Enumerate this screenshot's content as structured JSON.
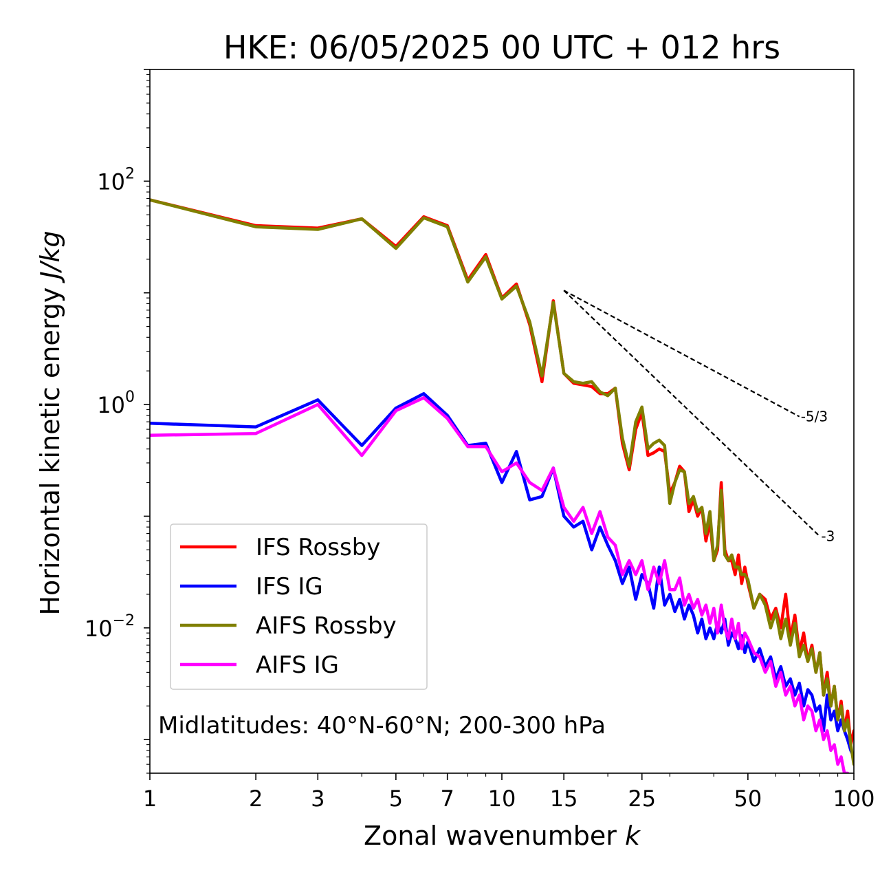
{
  "chart_data": {
    "type": "line",
    "title": "HKE: 06/05/2025 00 UTC + 012 hrs",
    "xlabel": "Zonal wavenumber",
    "xlabel_italic": "k",
    "ylabel": "Horizontal kinetic energy",
    "ylabel_italic": "J/kg",
    "xscale": "log",
    "yscale": "log",
    "xlim": [
      1,
      100
    ],
    "ylim": [
      0.0005,
      1000
    ],
    "x_ticks": [
      1,
      2,
      3,
      5,
      7,
      10,
      15,
      25,
      50,
      100
    ],
    "x_tick_labels": [
      "1",
      "2",
      "3",
      "5",
      "7",
      "10",
      "15",
      "25",
      "50",
      "100"
    ],
    "y_ticks": [
      {
        "value": 100,
        "base": "10",
        "exp": "2"
      },
      {
        "value": 1,
        "base": "10",
        "exp": "0"
      },
      {
        "value": 0.01,
        "base": "10",
        "exp": "−2"
      }
    ],
    "grid": false,
    "legend_position": "lower-left",
    "annotation": "Midlatitudes: 40°N-60°N; 200-300 hPa",
    "reference_lines": [
      {
        "label": "-5/3",
        "x": [
          15,
          70
        ],
        "y": [
          10.5,
          0.78
        ],
        "color": "#000000"
      },
      {
        "label": "-3",
        "x": [
          15,
          80
        ],
        "y": [
          10.5,
          0.066
        ],
        "color": "#000000"
      }
    ],
    "series": [
      {
        "name": "IFS Rossby",
        "color": "#ff0000",
        "x": [
          1,
          2,
          3,
          4,
          5,
          6,
          7,
          8,
          9,
          10,
          11,
          12,
          13,
          14,
          15,
          16,
          17,
          18,
          19,
          20,
          21,
          22,
          23,
          24,
          25,
          26,
          27,
          28,
          29,
          30,
          31,
          32,
          33,
          34,
          35,
          36,
          37,
          38,
          39,
          40,
          41,
          42,
          43,
          44,
          45,
          46,
          47,
          48,
          49,
          50,
          52,
          54,
          56,
          58,
          60,
          62,
          64,
          66,
          68,
          70,
          72,
          74,
          76,
          78,
          80,
          82,
          84,
          86,
          88,
          90,
          92,
          94,
          96,
          98,
          100
        ],
        "y": [
          68,
          40,
          38,
          46,
          26,
          48,
          40,
          13,
          22,
          9,
          12,
          5.2,
          1.6,
          8.5,
          1.9,
          1.55,
          1.5,
          1.45,
          1.25,
          1.25,
          1.4,
          0.45,
          0.26,
          0.6,
          0.85,
          0.35,
          0.37,
          0.4,
          0.38,
          0.16,
          0.2,
          0.28,
          0.25,
          0.11,
          0.14,
          0.1,
          0.12,
          0.06,
          0.09,
          0.04,
          0.05,
          0.2,
          0.05,
          0.04,
          0.04,
          0.03,
          0.045,
          0.025,
          0.035,
          0.025,
          0.015,
          0.02,
          0.018,
          0.012,
          0.015,
          0.01,
          0.02,
          0.008,
          0.013,
          0.006,
          0.009,
          0.005,
          0.007,
          0.004,
          0.006,
          0.0025,
          0.004,
          0.002,
          0.003,
          0.0015,
          0.0022,
          0.0012,
          0.0018,
          0.0009,
          0.0012
        ]
      },
      {
        "name": "IFS IG",
        "color": "#0000ff",
        "x": [
          1,
          2,
          3,
          4,
          5,
          6,
          7,
          8,
          9,
          10,
          11,
          12,
          13,
          14,
          15,
          16,
          17,
          18,
          19,
          20,
          21,
          22,
          23,
          24,
          25,
          26,
          27,
          28,
          29,
          30,
          31,
          32,
          33,
          34,
          35,
          36,
          37,
          38,
          39,
          40,
          41,
          42,
          43,
          44,
          45,
          46,
          47,
          48,
          49,
          50,
          52,
          54,
          56,
          58,
          60,
          62,
          64,
          66,
          68,
          70,
          72,
          74,
          76,
          78,
          80,
          82,
          84,
          86,
          88,
          90,
          92,
          94,
          96,
          98,
          100
        ],
        "y": [
          0.68,
          0.63,
          1.1,
          0.43,
          0.93,
          1.25,
          0.8,
          0.43,
          0.45,
          0.2,
          0.38,
          0.14,
          0.15,
          0.27,
          0.1,
          0.08,
          0.09,
          0.05,
          0.08,
          0.055,
          0.04,
          0.025,
          0.035,
          0.018,
          0.03,
          0.025,
          0.015,
          0.035,
          0.016,
          0.02,
          0.014,
          0.018,
          0.012,
          0.016,
          0.013,
          0.009,
          0.012,
          0.008,
          0.01,
          0.008,
          0.011,
          0.009,
          0.012,
          0.007,
          0.009,
          0.008,
          0.0065,
          0.0085,
          0.006,
          0.0075,
          0.005,
          0.0065,
          0.0045,
          0.0055,
          0.0035,
          0.0045,
          0.003,
          0.0035,
          0.0025,
          0.0032,
          0.002,
          0.0028,
          0.0025,
          0.0018,
          0.002,
          0.0012,
          0.0025,
          0.0015,
          0.0018,
          0.0012,
          0.0015,
          0.0012,
          0.001,
          0.0008,
          0.0007
        ]
      },
      {
        "name": "AIFS Rossby",
        "color": "#808000",
        "x": [
          1,
          2,
          3,
          4,
          5,
          6,
          7,
          8,
          9,
          10,
          11,
          12,
          13,
          14,
          15,
          16,
          17,
          18,
          19,
          20,
          21,
          22,
          23,
          24,
          25,
          26,
          27,
          28,
          29,
          30,
          31,
          32,
          33,
          34,
          35,
          36,
          37,
          38,
          39,
          40,
          41,
          42,
          43,
          44,
          45,
          46,
          47,
          48,
          49,
          50,
          52,
          54,
          56,
          58,
          60,
          62,
          64,
          66,
          68,
          70,
          72,
          74,
          76,
          78,
          80,
          82,
          84,
          86,
          88,
          90,
          92,
          94,
          96,
          98,
          100
        ],
        "y": [
          68,
          39,
          37,
          46,
          25,
          47,
          39,
          12.5,
          21,
          8.8,
          11.5,
          5.5,
          1.8,
          8.2,
          1.9,
          1.6,
          1.55,
          1.6,
          1.3,
          1.2,
          1.4,
          0.5,
          0.28,
          0.7,
          0.95,
          0.4,
          0.45,
          0.48,
          0.43,
          0.13,
          0.2,
          0.26,
          0.25,
          0.13,
          0.15,
          0.11,
          0.12,
          0.07,
          0.11,
          0.04,
          0.055,
          0.17,
          0.045,
          0.04,
          0.045,
          0.035,
          0.035,
          0.03,
          0.03,
          0.027,
          0.015,
          0.02,
          0.016,
          0.01,
          0.014,
          0.008,
          0.012,
          0.007,
          0.011,
          0.0055,
          0.007,
          0.005,
          0.0065,
          0.004,
          0.006,
          0.0025,
          0.0035,
          0.002,
          0.003,
          0.0015,
          0.002,
          0.0012,
          0.0015,
          0.0009,
          0.0006
        ]
      },
      {
        "name": "AIFS IG",
        "color": "#ff00ff",
        "x": [
          1,
          2,
          3,
          4,
          5,
          6,
          7,
          8,
          9,
          10,
          11,
          12,
          13,
          14,
          15,
          16,
          17,
          18,
          19,
          20,
          21,
          22,
          23,
          24,
          25,
          26,
          27,
          28,
          29,
          30,
          31,
          32,
          33,
          34,
          35,
          36,
          37,
          38,
          39,
          40,
          41,
          42,
          43,
          44,
          45,
          46,
          47,
          48,
          49,
          50,
          52,
          54,
          56,
          58,
          60,
          62,
          64,
          66,
          68,
          70,
          72,
          74,
          76,
          78,
          80,
          82,
          84,
          86,
          88,
          90,
          92,
          94,
          96,
          98,
          100
        ],
        "y": [
          0.53,
          0.55,
          1.0,
          0.35,
          0.88,
          1.15,
          0.75,
          0.42,
          0.42,
          0.25,
          0.3,
          0.2,
          0.17,
          0.27,
          0.12,
          0.09,
          0.12,
          0.07,
          0.11,
          0.065,
          0.055,
          0.03,
          0.04,
          0.03,
          0.04,
          0.022,
          0.035,
          0.025,
          0.04,
          0.022,
          0.022,
          0.028,
          0.016,
          0.02,
          0.015,
          0.018,
          0.013,
          0.016,
          0.011,
          0.015,
          0.009,
          0.016,
          0.01,
          0.008,
          0.012,
          0.008,
          0.011,
          0.0065,
          0.009,
          0.008,
          0.006,
          0.0055,
          0.004,
          0.005,
          0.003,
          0.004,
          0.0025,
          0.003,
          0.002,
          0.0025,
          0.0015,
          0.002,
          0.0018,
          0.0012,
          0.0015,
          0.001,
          0.0012,
          0.0008,
          0.0009,
          0.0006,
          0.0007,
          0.0005,
          0.0005,
          0.0004,
          0.0003
        ]
      }
    ]
  }
}
